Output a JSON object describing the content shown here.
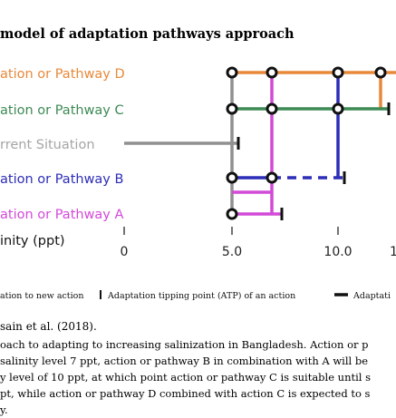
{
  "figure": {
    "title": "model of adaptation pathways approach",
    "labels": {
      "d": "ation or Pathway D",
      "c": "ation or Pathway C",
      "current": "rrent Situation",
      "b": "ation or Pathway B",
      "a": "ation or Pathway A",
      "axis": "inity (ppt)"
    },
    "ticks": [
      "0",
      "5.0",
      "10.0",
      "1"
    ],
    "legend": {
      "item1": "ation to new action",
      "item2": "Adaptation tipping point (ATP) of an action",
      "item3": "Adaptati"
    },
    "colors": {
      "pathway_d": "#e8893a",
      "pathway_c": "#3d8a55",
      "current": "#909090",
      "pathway_b": "#2d2db8",
      "pathway_a": "#d24ad8",
      "label_current": "#a5a5a5"
    }
  },
  "source": "sain et al. (2018).",
  "caption_lines": [
    "oach to adapting to increasing salinization in Bangladesh. Action or p",
    "salinity level 7 ppt, action or pathway B in combination with A will be",
    "y level of 10 ppt, at which point action or pathway C is suitable until s",
    "pt, while action or pathway D combined with action C is expected to s",
    "y."
  ]
}
